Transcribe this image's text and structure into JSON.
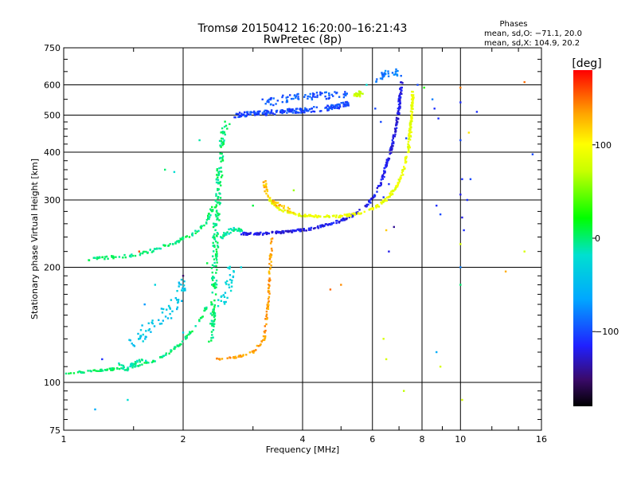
{
  "chart_data": {
    "type": "scatter",
    "title": "Tromsø 20150412 16:20:00–16:21:43",
    "subtitle": "RwPretec (8p)",
    "stats": {
      "heading": "Phases",
      "line1": "mean, sd,O: −71.1, 20.0",
      "line2": "mean, sd,X: 104.9, 20.2"
    },
    "xlabel": "Frequency [MHz]",
    "ylabel": "Stationary phase Virtual Height [km]",
    "x_scale": "log",
    "y_scale": "log",
    "xlim": [
      1,
      16
    ],
    "ylim": [
      75,
      750
    ],
    "grid": true,
    "x_ticks": [
      1,
      2,
      4,
      6,
      8,
      10,
      16
    ],
    "x_tick_labels": [
      "1",
      "2",
      "4",
      "6",
      "8",
      "10",
      "16"
    ],
    "y_ticks": [
      75,
      100,
      200,
      300,
      400,
      500,
      600,
      750
    ],
    "y_tick_labels": [
      "75",
      "100",
      "200",
      "300",
      "400",
      "500",
      "600",
      "750"
    ],
    "colorbar": {
      "label": "[deg]",
      "range": [
        -180,
        180
      ],
      "ticks": [
        100,
        0,
        -100
      ],
      "tick_labels": [
        "100",
        "0",
        "−100"
      ]
    },
    "series": [
      {
        "trace": [
          [
            1.0,
            105
          ],
          [
            1.15,
            107
          ],
          [
            1.3,
            108
          ],
          [
            1.5,
            110
          ],
          [
            1.7,
            114
          ],
          [
            1.85,
            120
          ],
          [
            2.0,
            128
          ],
          [
            2.15,
            140
          ],
          [
            2.25,
            150
          ],
          [
            2.3,
            160
          ]
        ],
        "color": 0,
        "spread": 2.5,
        "n": 120
      },
      {
        "trace": [
          [
            1.38,
            112
          ],
          [
            1.4,
            110
          ],
          [
            1.45,
            108
          ],
          [
            1.5,
            112
          ],
          [
            1.6,
            115
          ]
        ],
        "color": -10,
        "spread": 4,
        "n": 30
      },
      {
        "trace": [
          [
            1.5,
            125
          ],
          [
            1.65,
            140
          ],
          [
            1.8,
            150
          ],
          [
            1.95,
            165
          ],
          [
            2.0,
            185
          ]
        ],
        "color": -40,
        "spread": 14,
        "n": 70
      },
      {
        "trace": [
          [
            1.15,
            210
          ],
          [
            1.3,
            212
          ],
          [
            1.5,
            215
          ],
          [
            1.7,
            222
          ],
          [
            1.9,
            232
          ],
          [
            2.05,
            240
          ],
          [
            2.2,
            250
          ],
          [
            2.3,
            265
          ],
          [
            2.38,
            290
          ]
        ],
        "color": 0,
        "spread": 3.5,
        "n": 110
      },
      {
        "trace": [
          [
            2.35,
            125
          ],
          [
            2.38,
            150
          ],
          [
            2.4,
            200
          ],
          [
            2.42,
            250
          ],
          [
            2.45,
            300
          ],
          [
            2.48,
            380
          ],
          [
            2.52,
            450
          ],
          [
            2.6,
            480
          ]
        ],
        "color": 0,
        "spread": 7,
        "n": 200
      },
      {
        "trace": [
          [
            2.5,
            160
          ],
          [
            2.6,
            180
          ],
          [
            2.65,
            200
          ]
        ],
        "color": -30,
        "spread": 10,
        "n": 30
      },
      {
        "trace": [
          [
            2.5,
            240
          ],
          [
            2.65,
            252
          ],
          [
            2.8,
            250
          ]
        ],
        "color": -10,
        "spread": 5,
        "n": 40
      },
      {
        "trace": [
          [
            2.7,
            500
          ],
          [
            3.0,
            505
          ],
          [
            3.5,
            510
          ],
          [
            4.0,
            515
          ],
          [
            4.5,
            520
          ],
          [
            5.0,
            530
          ],
          [
            5.3,
            540
          ]
        ],
        "color": -100,
        "spread": 6,
        "n": 200
      },
      {
        "trace": [
          [
            3.2,
            540
          ],
          [
            3.7,
            555
          ],
          [
            4.2,
            560
          ],
          [
            4.7,
            565
          ],
          [
            5.2,
            570
          ]
        ],
        "color": -95,
        "spread": 10,
        "n": 80
      },
      {
        "trace": [
          [
            2.8,
            245
          ],
          [
            3.2,
            245
          ],
          [
            3.7,
            248
          ],
          [
            4.2,
            252
          ],
          [
            4.6,
            258
          ],
          [
            5.0,
            265
          ],
          [
            5.4,
            275
          ],
          [
            5.8,
            290
          ],
          [
            6.1,
            310
          ],
          [
            6.35,
            340
          ],
          [
            6.55,
            380
          ],
          [
            6.75,
            420
          ],
          [
            6.9,
            470
          ],
          [
            7.0,
            520
          ],
          [
            7.05,
            560
          ],
          [
            7.1,
            610
          ]
        ],
        "color": -120,
        "spread": 3,
        "n": 300
      },
      {
        "trace": [
          [
            3.3,
            300
          ],
          [
            3.5,
            285
          ],
          [
            3.8,
            275
          ],
          [
            4.2,
            272
          ],
          [
            4.6,
            272
          ],
          [
            5.0,
            272
          ],
          [
            5.4,
            275
          ],
          [
            5.8,
            280
          ],
          [
            6.2,
            290
          ],
          [
            6.6,
            305
          ],
          [
            6.9,
            325
          ],
          [
            7.2,
            360
          ],
          [
            7.4,
            410
          ],
          [
            7.5,
            470
          ],
          [
            7.55,
            540
          ],
          [
            7.6,
            580
          ]
        ],
        "color": 90,
        "spread": 3,
        "n": 300
      },
      {
        "trace": [
          [
            3.2,
            335
          ],
          [
            3.25,
            310
          ],
          [
            3.35,
            298
          ],
          [
            3.5,
            290
          ],
          [
            3.8,
            280
          ]
        ],
        "color": 125,
        "spread": 4,
        "n": 40
      },
      {
        "trace": [
          [
            2.4,
            115
          ],
          [
            2.7,
            116
          ],
          [
            3.0,
            120
          ],
          [
            3.2,
            130
          ],
          [
            3.25,
            150
          ],
          [
            3.3,
            180
          ],
          [
            3.32,
            210
          ],
          [
            3.35,
            240
          ]
        ],
        "color": 135,
        "spread": 2.5,
        "n": 100
      },
      {
        "trace": [
          [
            5.4,
            560
          ],
          [
            5.6,
            570
          ],
          [
            5.75,
            580
          ]
        ],
        "color": 75,
        "spread": 5,
        "n": 25
      },
      {
        "trace": [
          [
            6.2,
            620
          ],
          [
            6.5,
            640
          ],
          [
            6.8,
            650
          ],
          [
            7.0,
            640
          ]
        ],
        "color": -80,
        "spread": 8,
        "n": 30
      }
    ],
    "scattered_points": [
      [
        1.2,
        85,
        -60
      ],
      [
        1.25,
        115,
        -110
      ],
      [
        1.45,
        90,
        -20
      ],
      [
        1.55,
        220,
        160
      ],
      [
        1.6,
        160,
        -70
      ],
      [
        1.7,
        180,
        -30
      ],
      [
        1.8,
        360,
        0
      ],
      [
        1.9,
        355,
        -20
      ],
      [
        2.0,
        190,
        -150
      ],
      [
        2.0,
        135,
        -40
      ],
      [
        2.2,
        430,
        -10
      ],
      [
        2.3,
        205,
        10
      ],
      [
        2.8,
        200,
        -30
      ],
      [
        3.0,
        290,
        10
      ],
      [
        3.8,
        318,
        60
      ],
      [
        4.7,
        175,
        150
      ],
      [
        5.0,
        180,
        140
      ],
      [
        5.8,
        600,
        -20
      ],
      [
        6.1,
        520,
        -100
      ],
      [
        6.3,
        480,
        -100
      ],
      [
        6.4,
        130,
        80
      ],
      [
        6.5,
        115,
        80
      ],
      [
        6.5,
        250,
        120
      ],
      [
        6.6,
        220,
        -120
      ],
      [
        6.4,
        305,
        -110
      ],
      [
        6.6,
        330,
        -110
      ],
      [
        6.8,
        255,
        -140
      ],
      [
        7.2,
        95,
        70
      ],
      [
        7.3,
        435,
        -100
      ],
      [
        7.8,
        600,
        -100
      ],
      [
        8.1,
        590,
        30
      ],
      [
        8.5,
        550,
        -80
      ],
      [
        8.6,
        520,
        -110
      ],
      [
        8.8,
        490,
        -110
      ],
      [
        8.7,
        290,
        -110
      ],
      [
        8.9,
        275,
        -100
      ],
      [
        8.9,
        110,
        80
      ],
      [
        8.7,
        120,
        -60
      ],
      [
        10.0,
        590,
        145
      ],
      [
        10.0,
        540,
        -110
      ],
      [
        10.0,
        430,
        -100
      ],
      [
        10.1,
        340,
        -110
      ],
      [
        10.0,
        310,
        -120
      ],
      [
        10.1,
        270,
        -120
      ],
      [
        10.2,
        250,
        -110
      ],
      [
        10.0,
        230,
        80
      ],
      [
        10.0,
        200,
        -80
      ],
      [
        10.0,
        180,
        0
      ],
      [
        10.1,
        90,
        80
      ],
      [
        10.4,
        300,
        -110
      ],
      [
        10.5,
        450,
        110
      ],
      [
        10.6,
        340,
        -100
      ],
      [
        11.0,
        510,
        -110
      ],
      [
        13.0,
        195,
        130
      ],
      [
        14.5,
        610,
        150
      ],
      [
        14.5,
        220,
        80
      ],
      [
        15.2,
        395,
        -100
      ]
    ]
  }
}
